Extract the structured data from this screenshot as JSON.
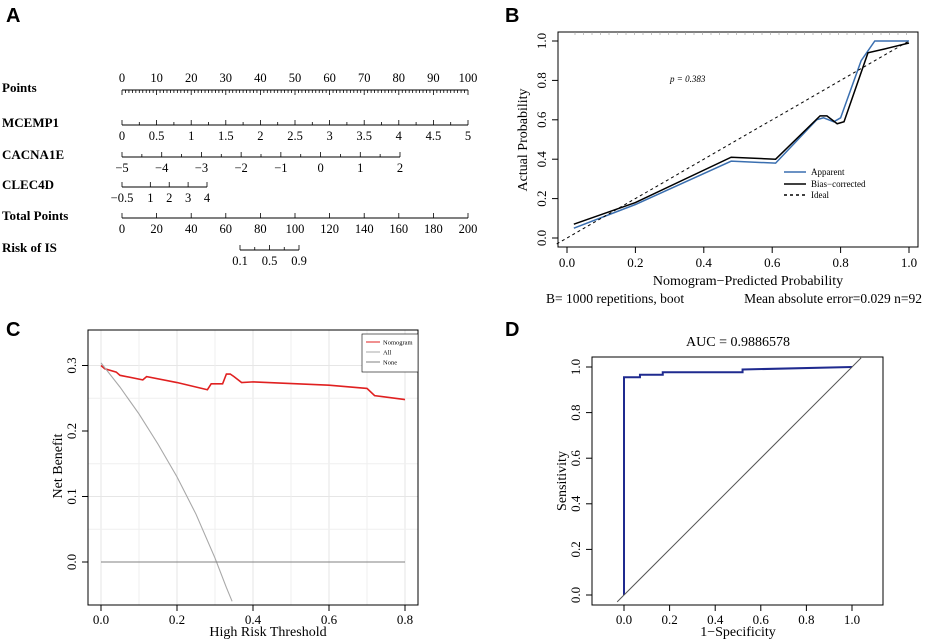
{
  "panel_letters": [
    "A",
    "B",
    "C",
    "D"
  ],
  "chart_data": [
    {
      "panel": "A",
      "type": "nomogram",
      "rows": [
        {
          "label": "Points",
          "min": 0,
          "max": 100,
          "ticks": [
            "0",
            "10",
            "20",
            "30",
            "40",
            "50",
            "60",
            "70",
            "80",
            "90",
            "100"
          ]
        },
        {
          "label": "MCEMP1",
          "min": 0,
          "max": 5,
          "ticks": [
            "0",
            "0.5",
            "1",
            "1.5",
            "2",
            "2.5",
            "3",
            "3.5",
            "4",
            "4.5",
            "5"
          ]
        },
        {
          "label": "CACNA1E",
          "min": -5,
          "max": 2,
          "ticks": [
            "−5",
            "−4",
            "−3",
            "−2",
            "−1",
            "0",
            "1",
            "2"
          ]
        },
        {
          "label": "CLEC4D",
          "min": -0.5,
          "max": 4,
          "ticks": [
            "−0.5",
            "1",
            "2",
            "3",
            "4"
          ]
        },
        {
          "label": "Total Points",
          "min": 0,
          "max": 200,
          "ticks": [
            "0",
            "20",
            "40",
            "60",
            "80",
            "100",
            "120",
            "140",
            "160",
            "180",
            "200"
          ]
        },
        {
          "label": "Risk of IS",
          "min": 0.1,
          "max": 0.9,
          "ticks": [
            "0.1",
            "0.5",
            "0.9"
          ]
        }
      ]
    },
    {
      "panel": "B",
      "type": "line",
      "title": "",
      "xlabel": "Nomogram−Predicted Probability",
      "ylabel": "Actual Probability",
      "xlim": [
        0,
        1.0
      ],
      "ylim": [
        0,
        1.0
      ],
      "xticks": [
        "0.0",
        "0.2",
        "0.4",
        "0.6",
        "0.8",
        "1.0"
      ],
      "yticks": [
        "0.0",
        "0.2",
        "0.4",
        "0.6",
        "0.8",
        "1.0"
      ],
      "annotation": "p = 0.383",
      "footer_left": "B= 1000 repetitions, boot",
      "footer_right": "Mean absolute error=0.029 n=92",
      "legend": [
        "Apparent",
        "Bias−corrected",
        "Ideal"
      ],
      "series": [
        {
          "name": "Apparent",
          "color": "#3a6fb0",
          "x": [
            0.02,
            0.2,
            0.48,
            0.61,
            0.73,
            0.75,
            0.78,
            0.8,
            0.86,
            0.9,
            1.0
          ],
          "y": [
            0.05,
            0.17,
            0.39,
            0.38,
            0.6,
            0.61,
            0.59,
            0.61,
            0.9,
            1.0,
            1.0
          ]
        },
        {
          "name": "Bias−corrected",
          "color": "#000000",
          "x": [
            0.02,
            0.2,
            0.48,
            0.61,
            0.74,
            0.76,
            0.79,
            0.81,
            0.88,
            0.93,
            1.0
          ],
          "y": [
            0.07,
            0.18,
            0.41,
            0.4,
            0.62,
            0.62,
            0.58,
            0.59,
            0.94,
            0.96,
            0.99
          ]
        },
        {
          "name": "Ideal",
          "color": "#000000",
          "dashed": true,
          "x": [
            -0.03,
            1.0
          ],
          "y": [
            -0.03,
            1.0
          ]
        }
      ]
    },
    {
      "panel": "C",
      "type": "line",
      "xlabel": "High Risk Threshold",
      "ylabel": "Net Benefit",
      "xlim": [
        0,
        0.8
      ],
      "ylim": [
        -0.05,
        0.32
      ],
      "xticks": [
        "0.0",
        "0.2",
        "0.4",
        "0.6",
        "0.8"
      ],
      "yticks": [
        "0.0",
        "0.1",
        "0.2",
        "0.3"
      ],
      "legend": [
        "Nomogram",
        "All",
        "None"
      ],
      "series": [
        {
          "name": "Nomogram",
          "color": "#e02020",
          "x": [
            0,
            0.01,
            0.04,
            0.05,
            0.11,
            0.12,
            0.2,
            0.28,
            0.29,
            0.32,
            0.33,
            0.34,
            0.35,
            0.37,
            0.4,
            0.6,
            0.7,
            0.72,
            0.8
          ],
          "y": [
            0.3,
            0.295,
            0.29,
            0.285,
            0.278,
            0.283,
            0.274,
            0.263,
            0.272,
            0.272,
            0.287,
            0.287,
            0.283,
            0.274,
            0.275,
            0.27,
            0.265,
            0.254,
            0.248
          ]
        },
        {
          "name": "All",
          "color": "#a8a8a8",
          "x": [
            0,
            0.05,
            0.1,
            0.15,
            0.2,
            0.25,
            0.3,
            0.33,
            0.345
          ],
          "y": [
            0.304,
            0.267,
            0.226,
            0.18,
            0.13,
            0.073,
            0.006,
            -0.039,
            -0.06
          ]
        },
        {
          "name": "None",
          "color": "#808080",
          "x": [
            0,
            0.8
          ],
          "y": [
            0,
            0
          ]
        }
      ]
    },
    {
      "panel": "D",
      "type": "line",
      "title": "AUC = 0.9886578",
      "xlabel": "1−Specificity",
      "ylabel": "Sensitivity",
      "xlim": [
        0,
        1.0
      ],
      "ylim": [
        0,
        1.0
      ],
      "xticks": [
        "0.0",
        "0.2",
        "0.4",
        "0.6",
        "0.8",
        "1.0"
      ],
      "yticks": [
        "0.0",
        "0.2",
        "0.4",
        "0.6",
        "0.8",
        "1.0"
      ],
      "series": [
        {
          "name": "ROC",
          "color": "#1f2a8f",
          "x": [
            0,
            0,
            0.02,
            0.02,
            0.07,
            0.07,
            0.09,
            0.09,
            0.17,
            0.17,
            0.52,
            0.52,
            1.0
          ],
          "y": [
            0,
            0.955,
            0.955,
            0.955,
            0.955,
            0.966,
            0.966,
            0.966,
            0.966,
            0.977,
            0.977,
            0.989,
            1.0
          ]
        },
        {
          "name": "Reference",
          "color": "#555555",
          "x": [
            -0.03,
            1.04
          ],
          "y": [
            -0.03,
            1.04
          ]
        }
      ]
    }
  ]
}
